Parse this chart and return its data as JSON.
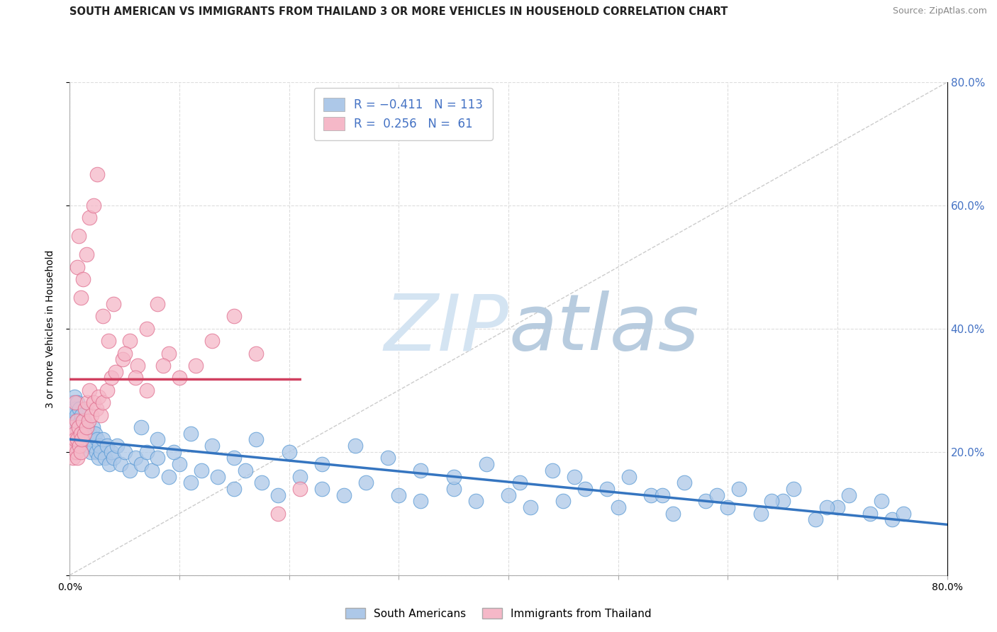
{
  "title": "SOUTH AMERICAN VS IMMIGRANTS FROM THAILAND 3 OR MORE VEHICLES IN HOUSEHOLD CORRELATION CHART",
  "source": "Source: ZipAtlas.com",
  "ylabel": "3 or more Vehicles in Household",
  "legend_blue_label": "South Americans",
  "legend_pink_label": "Immigrants from Thailand",
  "blue_color": "#adc8e8",
  "blue_edge_color": "#5b9bd5",
  "pink_color": "#f5b8c8",
  "pink_edge_color": "#e07090",
  "blue_line_color": "#3575c0",
  "pink_line_color": "#d04060",
  "diag_color": "#cccccc",
  "grid_color": "#dddddd",
  "watermark_zip_color": "#d0dff0",
  "watermark_atlas_color": "#b8cce0",
  "title_color": "#222222",
  "source_color": "#888888",
  "right_tick_color": "#4472c4",
  "xmin": 0.0,
  "xmax": 0.8,
  "ymin": 0.0,
  "ymax": 0.8,
  "blue_x": [
    0.001,
    0.002,
    0.003,
    0.003,
    0.004,
    0.004,
    0.005,
    0.005,
    0.005,
    0.006,
    0.006,
    0.007,
    0.007,
    0.008,
    0.008,
    0.009,
    0.01,
    0.01,
    0.011,
    0.012,
    0.012,
    0.013,
    0.014,
    0.015,
    0.016,
    0.017,
    0.018,
    0.019,
    0.02,
    0.021,
    0.022,
    0.023,
    0.024,
    0.025,
    0.026,
    0.027,
    0.028,
    0.03,
    0.032,
    0.034,
    0.036,
    0.038,
    0.04,
    0.043,
    0.046,
    0.05,
    0.055,
    0.06,
    0.065,
    0.07,
    0.075,
    0.08,
    0.09,
    0.1,
    0.11,
    0.12,
    0.135,
    0.15,
    0.16,
    0.175,
    0.19,
    0.21,
    0.23,
    0.25,
    0.27,
    0.3,
    0.32,
    0.35,
    0.37,
    0.4,
    0.42,
    0.45,
    0.47,
    0.5,
    0.53,
    0.55,
    0.58,
    0.6,
    0.63,
    0.65,
    0.68,
    0.7,
    0.73,
    0.75,
    0.065,
    0.08,
    0.095,
    0.11,
    0.13,
    0.15,
    0.17,
    0.2,
    0.23,
    0.26,
    0.29,
    0.32,
    0.35,
    0.38,
    0.41,
    0.44,
    0.46,
    0.49,
    0.51,
    0.54,
    0.56,
    0.59,
    0.61,
    0.64,
    0.66,
    0.69,
    0.71,
    0.74,
    0.76
  ],
  "blue_y": [
    0.26,
    0.24,
    0.28,
    0.22,
    0.25,
    0.29,
    0.23,
    0.27,
    0.2,
    0.26,
    0.22,
    0.25,
    0.28,
    0.24,
    0.21,
    0.27,
    0.25,
    0.23,
    0.26,
    0.24,
    0.22,
    0.25,
    0.23,
    0.22,
    0.24,
    0.21,
    0.23,
    0.2,
    0.22,
    0.24,
    0.21,
    0.23,
    0.2,
    0.22,
    0.19,
    0.21,
    0.2,
    0.22,
    0.19,
    0.21,
    0.18,
    0.2,
    0.19,
    0.21,
    0.18,
    0.2,
    0.17,
    0.19,
    0.18,
    0.2,
    0.17,
    0.19,
    0.16,
    0.18,
    0.15,
    0.17,
    0.16,
    0.14,
    0.17,
    0.15,
    0.13,
    0.16,
    0.14,
    0.13,
    0.15,
    0.13,
    0.12,
    0.14,
    0.12,
    0.13,
    0.11,
    0.12,
    0.14,
    0.11,
    0.13,
    0.1,
    0.12,
    0.11,
    0.1,
    0.12,
    0.09,
    0.11,
    0.1,
    0.09,
    0.24,
    0.22,
    0.2,
    0.23,
    0.21,
    0.19,
    0.22,
    0.2,
    0.18,
    0.21,
    0.19,
    0.17,
    0.16,
    0.18,
    0.15,
    0.17,
    0.16,
    0.14,
    0.16,
    0.13,
    0.15,
    0.13,
    0.14,
    0.12,
    0.14,
    0.11,
    0.13,
    0.12,
    0.1
  ],
  "pink_x": [
    0.001,
    0.002,
    0.003,
    0.003,
    0.004,
    0.004,
    0.005,
    0.005,
    0.006,
    0.006,
    0.007,
    0.007,
    0.008,
    0.009,
    0.01,
    0.01,
    0.011,
    0.012,
    0.013,
    0.014,
    0.015,
    0.016,
    0.017,
    0.018,
    0.02,
    0.022,
    0.024,
    0.026,
    0.028,
    0.03,
    0.034,
    0.038,
    0.042,
    0.048,
    0.055,
    0.062,
    0.07,
    0.08,
    0.09,
    0.1,
    0.115,
    0.13,
    0.15,
    0.17,
    0.19,
    0.21,
    0.007,
    0.008,
    0.01,
    0.012,
    0.015,
    0.018,
    0.022,
    0.025,
    0.03,
    0.035,
    0.04,
    0.05,
    0.06,
    0.07,
    0.085
  ],
  "pink_y": [
    0.22,
    0.2,
    0.24,
    0.19,
    0.23,
    0.21,
    0.22,
    0.28,
    0.2,
    0.25,
    0.22,
    0.19,
    0.24,
    0.21,
    0.23,
    0.2,
    0.22,
    0.25,
    0.23,
    0.27,
    0.24,
    0.28,
    0.25,
    0.3,
    0.26,
    0.28,
    0.27,
    0.29,
    0.26,
    0.28,
    0.3,
    0.32,
    0.33,
    0.35,
    0.38,
    0.34,
    0.4,
    0.44,
    0.36,
    0.32,
    0.34,
    0.38,
    0.42,
    0.36,
    0.1,
    0.14,
    0.5,
    0.55,
    0.45,
    0.48,
    0.52,
    0.58,
    0.6,
    0.65,
    0.42,
    0.38,
    0.44,
    0.36,
    0.32,
    0.3,
    0.34
  ]
}
